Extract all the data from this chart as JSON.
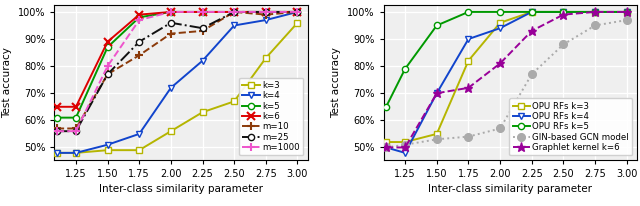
{
  "x": [
    1.1,
    1.25,
    1.5,
    1.75,
    2.0,
    2.25,
    2.5,
    2.75,
    3.0
  ],
  "left": {
    "k3": [
      0.48,
      0.48,
      0.49,
      0.49,
      0.56,
      0.63,
      0.67,
      0.83,
      0.96
    ],
    "k4": [
      0.48,
      0.48,
      0.51,
      0.55,
      0.72,
      0.82,
      0.95,
      0.97,
      1.0
    ],
    "k5": [
      0.61,
      0.61,
      0.87,
      0.98,
      1.0,
      1.0,
      1.0,
      1.0,
      1.0
    ],
    "k6": [
      0.65,
      0.65,
      0.89,
      0.99,
      1.0,
      1.0,
      1.0,
      1.0,
      1.0
    ],
    "m10": [
      0.57,
      0.57,
      0.77,
      0.84,
      0.92,
      0.93,
      1.0,
      0.99,
      1.0
    ],
    "m25": [
      0.56,
      0.56,
      0.77,
      0.89,
      0.96,
      0.94,
      1.0,
      1.0,
      1.0
    ],
    "m1000": [
      0.56,
      0.56,
      0.8,
      0.97,
      1.0,
      1.0,
      1.0,
      1.0,
      1.0
    ]
  },
  "right": {
    "k3": [
      0.52,
      0.52,
      0.55,
      0.82,
      0.96,
      1.0,
      1.0,
      1.0,
      1.0
    ],
    "k4": [
      0.5,
      0.48,
      0.7,
      0.9,
      0.94,
      1.0,
      1.0,
      1.0,
      1.0
    ],
    "k5": [
      0.65,
      0.79,
      0.95,
      1.0,
      1.0,
      1.0,
      1.0,
      1.0,
      1.0
    ],
    "gin": [
      0.5,
      0.51,
      0.53,
      0.54,
      0.57,
      0.77,
      0.88,
      0.95,
      0.97
    ],
    "graphlet": [
      0.5,
      0.5,
      0.7,
      0.72,
      0.81,
      0.93,
      0.99,
      1.0,
      1.0
    ]
  },
  "colors": {
    "k3": "#b5b500",
    "k4": "#1144cc",
    "k5": "#009900",
    "k6": "#dd0000",
    "m10": "#8b3a0a",
    "m25": "#111111",
    "m1000": "#ee55cc",
    "gin": "#aaaaaa",
    "graphlet": "#990099"
  },
  "xlim": [
    1.08,
    3.08
  ],
  "ylim": [
    0.455,
    1.025
  ],
  "xticks": [
    1.25,
    1.5,
    1.75,
    2.0,
    2.25,
    2.5,
    2.75,
    3.0
  ],
  "yticks": [
    0.5,
    0.6,
    0.7,
    0.8,
    0.9,
    1.0
  ],
  "xlabel": "Inter-class similarity parameter",
  "ylabel": "Test accuracy",
  "left_legend_labels": [
    "k=3",
    "k=4",
    "k=5",
    "k=6",
    "m=10",
    "m=25",
    "m=1000"
  ],
  "right_legend_labels": [
    "OPU RFs k=3",
    "OPU RFs k=4",
    "OPU RFs k=5",
    "GIN-based GCN model",
    "Graphlet kernel k=6"
  ]
}
